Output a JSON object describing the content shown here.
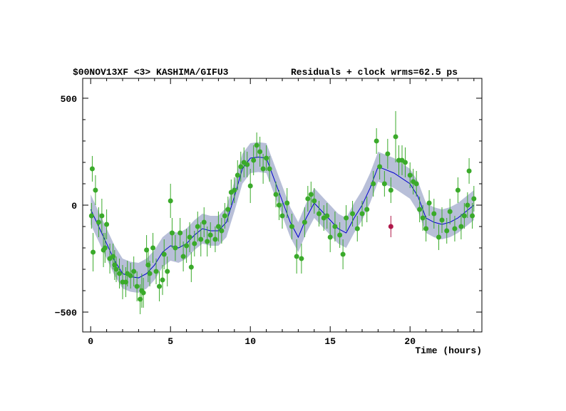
{
  "chart_data": {
    "type": "scatter",
    "title": "$00NOV13XF <3> KASHIMA/GIFU3",
    "subtitle": "Residuals + clock wrms=62.5  ps",
    "x_label": "Time (hours)",
    "xlim": [
      -0.5,
      24.5
    ],
    "ylim": [
      -593,
      593
    ],
    "xticks": [
      0,
      5,
      10,
      15,
      20
    ],
    "yticks": [
      {
        "value": -500,
        "label": "−500"
      },
      0,
      500
    ],
    "xminor_ticks": [
      1,
      2,
      3,
      4,
      6,
      7,
      8,
      9,
      11,
      12,
      13,
      14,
      16,
      17,
      18,
      19,
      21,
      22,
      23,
      24
    ],
    "yminor_ticks": [
      -400,
      -300,
      -200,
      -100,
      100,
      200,
      300,
      400
    ],
    "model": {
      "color": "#0000cc",
      "band_color": "#b8bfd8",
      "x": [
        0,
        0.5,
        1,
        1.5,
        2,
        2.5,
        3,
        3.5,
        4,
        4.5,
        5,
        5.5,
        6,
        6.5,
        7,
        7.5,
        8,
        8.5,
        9,
        9.5,
        10,
        10.5,
        11,
        11.5,
        12,
        12.5,
        13,
        13.5,
        14,
        14.5,
        15,
        15.5,
        16,
        16.5,
        17,
        17.5,
        18,
        19,
        20,
        20.5,
        21,
        21.5,
        22,
        22.5,
        23,
        23.5,
        24
      ],
      "values": [
        -20,
        -100,
        -180,
        -260,
        -320,
        -335,
        -340,
        -320,
        -280,
        -220,
        -190,
        -200,
        -180,
        -140,
        -110,
        -120,
        -120,
        -80,
        40,
        170,
        220,
        225,
        220,
        120,
        20,
        -80,
        -150,
        -60,
        10,
        -30,
        -70,
        -110,
        -130,
        -60,
        0,
        80,
        180,
        150,
        100,
        40,
        -60,
        -80,
        -90,
        -80,
        -60,
        -30,
        0
      ],
      "lower": [
        -90,
        -170,
        -250,
        -330,
        -390,
        -405,
        -410,
        -390,
        -350,
        -290,
        -260,
        -270,
        -250,
        -210,
        -180,
        -190,
        -190,
        -150,
        -30,
        100,
        150,
        155,
        150,
        50,
        -50,
        -150,
        -220,
        -130,
        -60,
        -100,
        -140,
        -180,
        -200,
        -130,
        -70,
        10,
        110,
        80,
        30,
        -30,
        -130,
        -150,
        -160,
        -150,
        -130,
        -100,
        -70
      ],
      "upper": [
        50,
        -30,
        -110,
        -190,
        -250,
        -265,
        -270,
        -250,
        -210,
        -150,
        -120,
        -130,
        -110,
        -70,
        -40,
        -50,
        -50,
        -10,
        110,
        240,
        290,
        295,
        290,
        190,
        90,
        -10,
        -80,
        10,
        80,
        40,
        0,
        -40,
        -60,
        10,
        70,
        150,
        250,
        220,
        170,
        110,
        10,
        -10,
        -20,
        -10,
        10,
        40,
        70
      ]
    },
    "series": [
      {
        "color": "#3aaa2a",
        "x": [
          0.05,
          0.1,
          0.15,
          0.3,
          0.5,
          0.7,
          0.8,
          0.9,
          1.0,
          1.2,
          1.4,
          1.5,
          1.6,
          1.8,
          2.0,
          2.2,
          2.3,
          2.5,
          2.7,
          2.9,
          3.1,
          3.2,
          3.3,
          3.5,
          3.6,
          3.7,
          3.9,
          4.1,
          4.3,
          4.5,
          4.6,
          4.8,
          5.0,
          5.1,
          5.3,
          5.6,
          5.8,
          6.0,
          6.2,
          6.3,
          6.5,
          6.7,
          6.9,
          7.1,
          7.3,
          7.5,
          7.8,
          8.0,
          8.2,
          8.4,
          8.6,
          8.8,
          9.0,
          9.2,
          9.4,
          9.6,
          9.8,
          10.0,
          10.2,
          10.4,
          10.6,
          10.8,
          11.0,
          11.2,
          11.6,
          11.8,
          12.0,
          12.3,
          12.6,
          12.9,
          13.2,
          13.4,
          13.6,
          13.8,
          14.0,
          14.3,
          14.6,
          14.8,
          15.0,
          15.3,
          15.6,
          15.8,
          16.0,
          16.4,
          16.7,
          17.0,
          17.3,
          17.7,
          17.9,
          18.1,
          18.4,
          18.6,
          18.8,
          19.1,
          19.3,
          19.5,
          19.7,
          20.0,
          20.2,
          20.4,
          20.6,
          20.8,
          21.0,
          21.2,
          21.5,
          21.8,
          22.0,
          22.3,
          22.5,
          22.8,
          23.0,
          23.2,
          23.4,
          23.6,
          23.7,
          23.9,
          24.0
        ],
        "values": [
          -50,
          170,
          -220,
          70,
          -80,
          -50,
          -210,
          -200,
          -90,
          -250,
          -240,
          -280,
          -300,
          -320,
          -360,
          -360,
          -320,
          -330,
          -310,
          -380,
          -440,
          -400,
          -410,
          -210,
          -280,
          -320,
          -200,
          -310,
          -380,
          -350,
          -230,
          -310,
          20,
          -130,
          -200,
          -130,
          -240,
          -190,
          -150,
          -290,
          -180,
          -100,
          -160,
          -80,
          -170,
          -140,
          -160,
          -100,
          -120,
          -50,
          -20,
          60,
          70,
          140,
          180,
          200,
          190,
          90,
          210,
          280,
          250,
          170,
          220,
          170,
          50,
          0,
          -50,
          10,
          -100,
          -240,
          -250,
          -80,
          30,
          50,
          20,
          -40,
          -60,
          -50,
          -150,
          -100,
          -140,
          -230,
          -60,
          -40,
          -110,
          -40,
          -20,
          100,
          300,
          180,
          100,
          240,
          70,
          320,
          210,
          210,
          200,
          140,
          110,
          100,
          -20,
          -60,
          -110,
          10,
          -40,
          -150,
          -70,
          -120,
          -30,
          -110,
          70,
          -100,
          -50,
          0,
          160,
          -50,
          30
        ],
        "errors": [
          60,
          60,
          90,
          70,
          70,
          80,
          80,
          70,
          70,
          70,
          60,
          70,
          60,
          70,
          80,
          70,
          60,
          60,
          70,
          70,
          70,
          80,
          70,
          70,
          80,
          60,
          70,
          60,
          70,
          70,
          70,
          70,
          80,
          70,
          60,
          70,
          70,
          80,
          70,
          70,
          60,
          70,
          80,
          70,
          70,
          60,
          60,
          70,
          60,
          60,
          60,
          60,
          60,
          70,
          70,
          70,
          60,
          80,
          70,
          60,
          70,
          70,
          60,
          60,
          60,
          70,
          60,
          70,
          60,
          80,
          70,
          70,
          60,
          60,
          60,
          60,
          60,
          60,
          70,
          70,
          60,
          70,
          60,
          60,
          60,
          60,
          60,
          60,
          60,
          60,
          60,
          70,
          60,
          120,
          70,
          70,
          70,
          60,
          60,
          60,
          60,
          60,
          60,
          60,
          70,
          60,
          60,
          60,
          60,
          60,
          60,
          60,
          60,
          60,
          60,
          60,
          60
        ]
      },
      {
        "color": "#b0184a",
        "x": [
          18.8
        ],
        "values": [
          -100
        ],
        "errors": [
          50
        ]
      }
    ]
  }
}
